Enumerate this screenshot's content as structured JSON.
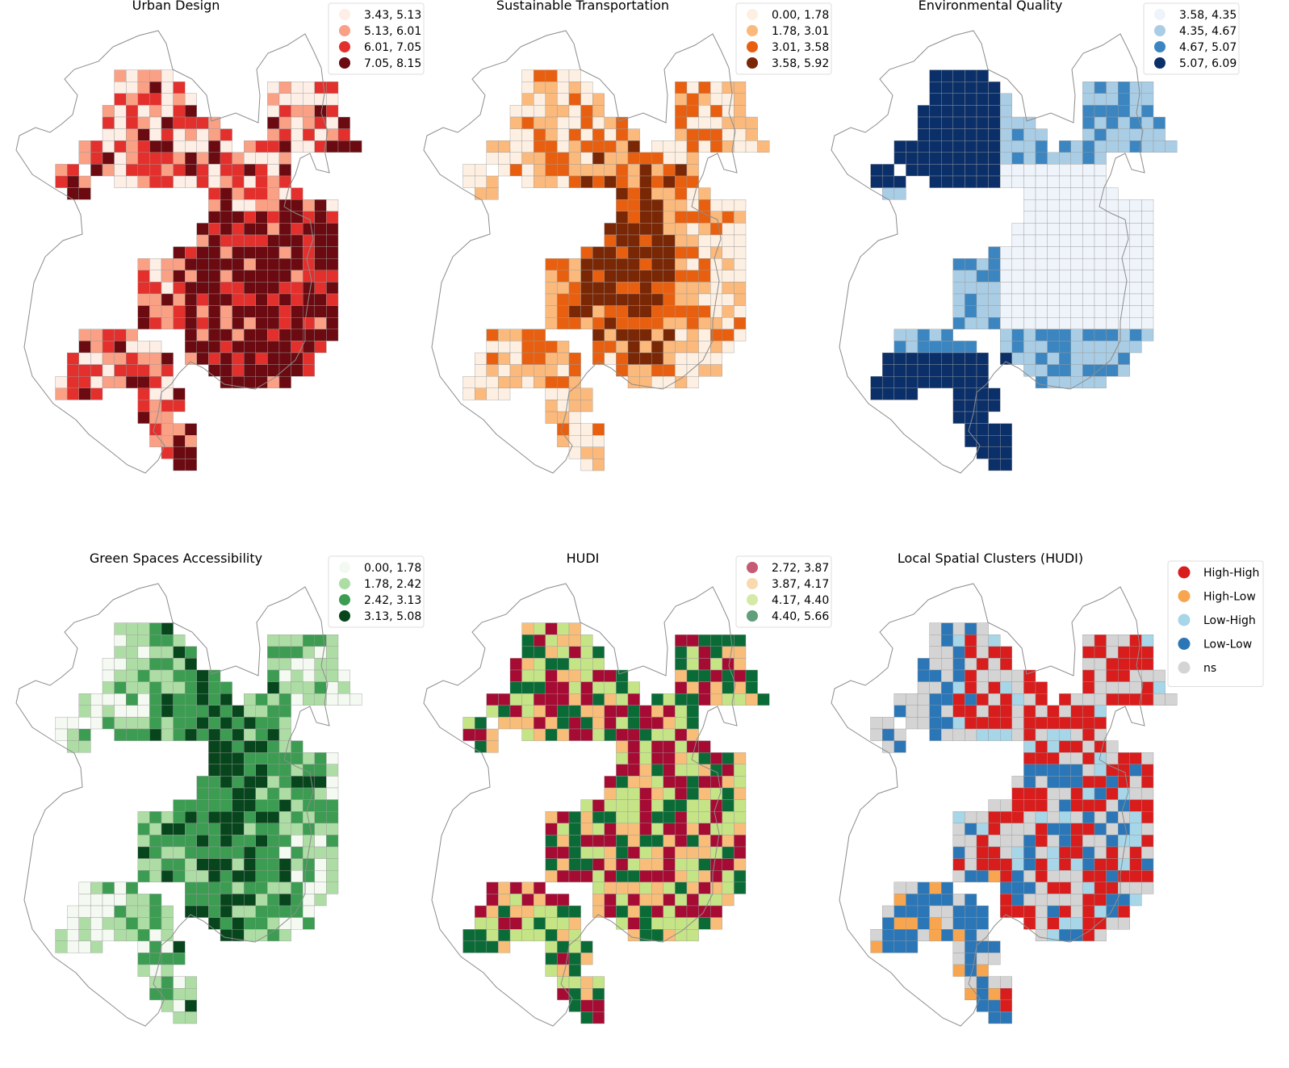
{
  "panels": [
    {
      "id": "urban-design",
      "title": "Urban Design",
      "legend": [
        {
          "label": "3.43, 5.13",
          "color": "#fdeee6"
        },
        {
          "label": "5.13, 6.01",
          "color": "#f9a085"
        },
        {
          "label": "6.01, 7.05",
          "color": "#e3302c"
        },
        {
          "label": "7.05, 8.15",
          "color": "#6b0a10"
        }
      ]
    },
    {
      "id": "sustainable-transportation",
      "title": "Sustainable Transportation",
      "legend": [
        {
          "label": "0.00, 1.78",
          "color": "#fdf0e2"
        },
        {
          "label": "1.78, 3.01",
          "color": "#fbb97c"
        },
        {
          "label": "3.01, 3.58",
          "color": "#e8600f"
        },
        {
          "label": "3.58, 5.92",
          "color": "#7a2706"
        }
      ]
    },
    {
      "id": "environmental-quality",
      "title": "Environmental Quality",
      "legend": [
        {
          "label": "3.58, 4.35",
          "color": "#eff4fb"
        },
        {
          "label": "4.35, 4.67",
          "color": "#a9cde5"
        },
        {
          "label": "4.67, 5.07",
          "color": "#3b86c1"
        },
        {
          "label": "5.07, 6.09",
          "color": "#0b3069"
        }
      ]
    },
    {
      "id": "green-spaces-accessibility",
      "title": "Green Spaces Accessibility",
      "legend": [
        {
          "label": "0.00, 1.78",
          "color": "#f4faf2"
        },
        {
          "label": "1.78, 2.42",
          "color": "#addda4"
        },
        {
          "label": "2.42, 3.13",
          "color": "#3c9c52"
        },
        {
          "label": "3.13, 5.08",
          "color": "#07451d"
        }
      ]
    },
    {
      "id": "hudi",
      "title": "HUDI",
      "legend": [
        {
          "label": "2.72, 3.87",
          "color": "#a50b33"
        },
        {
          "label": "3.87, 4.17",
          "color": "#f8bd79"
        },
        {
          "label": "4.17, 4.40",
          "color": "#c5e486"
        },
        {
          "label": "4.40, 5.66",
          "color": "#0b6b36"
        }
      ],
      "legend_dot_colors": [
        "#c55a73",
        "#f9d9ae",
        "#d5eaa6",
        "#5f9f7a"
      ]
    },
    {
      "id": "local-spatial-clusters",
      "title": "Local Spatial Clusters (HUDI)",
      "legend": [
        {
          "label": "High-High",
          "color": "#d91c1c"
        },
        {
          "label": "High-Low",
          "color": "#f8a54f"
        },
        {
          "label": "Low-High",
          "color": "#a6d6e8"
        },
        {
          "label": "Low-Low",
          "color": "#2b76b6"
        },
        {
          "label": "ns",
          "color": "#d4d4d4"
        }
      ]
    }
  ]
}
